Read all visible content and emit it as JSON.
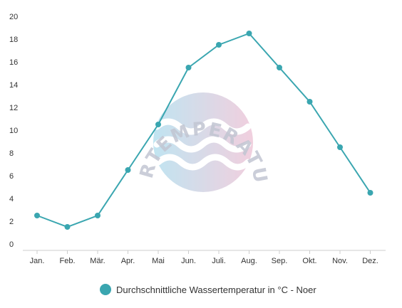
{
  "chart_data": {
    "type": "line",
    "categories": [
      "Jan.",
      "Feb.",
      "Mär.",
      "Apr.",
      "Mai",
      "Jun.",
      "Juli.",
      "Aug.",
      "Sep.",
      "Okt.",
      "Nov.",
      "Dez."
    ],
    "series": [
      {
        "name": "Durchschnittliche Wassertemperatur in °C - Noer",
        "values": [
          2.5,
          1.5,
          2.5,
          6.5,
          10.5,
          15.5,
          17.5,
          18.5,
          15.5,
          12.5,
          8.5,
          4.5
        ],
        "color": "#3aa6b0"
      }
    ],
    "yticks": [
      "0",
      "2",
      "4",
      "6",
      "8",
      "10",
      "12",
      "14",
      "16",
      "18",
      "20"
    ],
    "ylim": [
      0,
      20
    ],
    "grid": false,
    "legend_position": "bottom"
  },
  "watermark": {
    "text": "WASSERTEMPERATUR.ORG",
    "gradient_colors": [
      "#8ecfe6",
      "#e6a9c4"
    ]
  }
}
